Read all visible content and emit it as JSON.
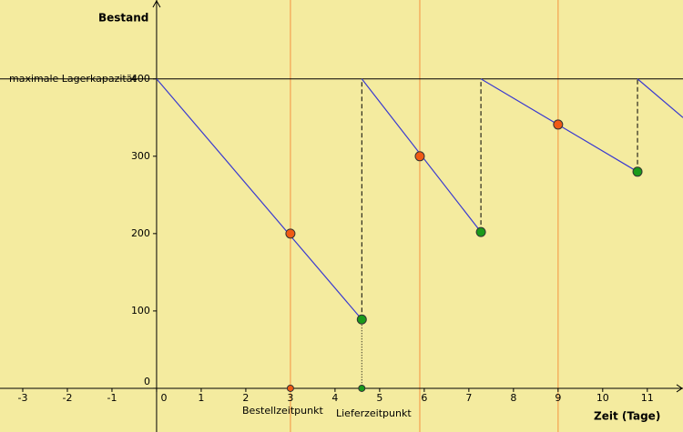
{
  "chart_data": {
    "type": "line",
    "y_label": "Bestand",
    "x_label": "Zeit (Tage)",
    "capacity_label": "maximale Lagerkapazität",
    "capacity": 400,
    "order_label": "Bestellzeitpunkt",
    "delivery_label": "Lieferzeitpunkt",
    "xlim": [
      -3.51,
      11.8
    ],
    "ylim": [
      -56.5,
      502
    ],
    "xticks": [
      -3,
      -2,
      -1,
      0,
      1,
      2,
      3,
      4,
      5,
      6,
      7,
      8,
      9,
      10,
      11
    ],
    "yticks": [
      0,
      100,
      200,
      300,
      400
    ],
    "line_color": "#3a3ad0",
    "segments": [
      {
        "x": [
          0,
          4.6
        ],
        "y": [
          400,
          89
        ]
      },
      {
        "x": [
          4.6,
          7.27
        ],
        "y": [
          400,
          202
        ]
      },
      {
        "x": [
          7.27,
          10.78
        ],
        "y": [
          400,
          280
        ]
      },
      {
        "x": [
          10.78,
          11.8
        ],
        "y": [
          400,
          350
        ]
      }
    ],
    "order_points": {
      "color": "#f05a14",
      "x": [
        3,
        5.9,
        9
      ],
      "y": [
        200,
        300,
        341
      ]
    },
    "delivery_points": {
      "color": "#1a9a1a",
      "x": [
        4.6,
        7.27,
        10.78
      ],
      "y": [
        89,
        202,
        280
      ]
    },
    "order_lines_color": "#f5a050",
    "axis_points": [
      {
        "x": 3,
        "color": "#f05a14"
      },
      {
        "x": 4.6,
        "color": "#1a9a1a"
      }
    ]
  }
}
